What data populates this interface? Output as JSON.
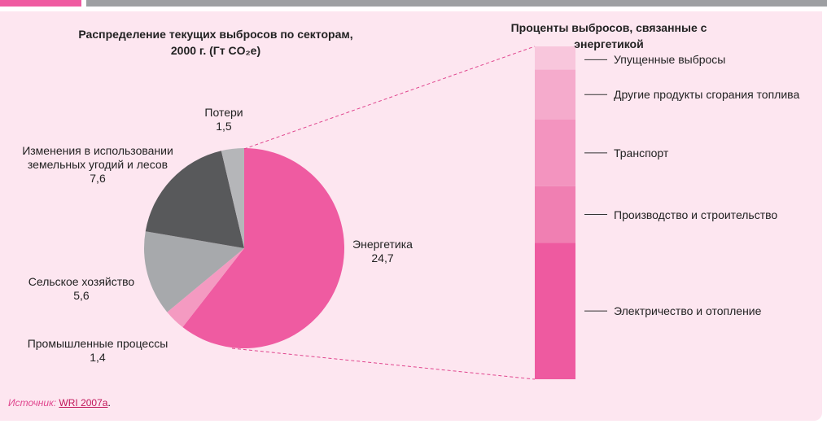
{
  "chart_data": [
    {
      "type": "pie",
      "title": "Распределение текущих выбросов по секторам,\n2000 г. (Гт CO₂e)",
      "categories": [
        "Энергетика",
        "Промышленные процессы",
        "Сельское хозяйство",
        "Изменения в использовании\nземельных угодий и лесов",
        "Потери"
      ],
      "values": [
        24.7,
        1.4,
        5.6,
        7.6,
        1.5
      ],
      "value_labels": [
        "24,7",
        "1,4",
        "5,6",
        "7,6",
        "1,5"
      ],
      "colors": [
        "#ef5ba1",
        "#f49ac1",
        "#a7a9ac",
        "#58595b",
        "#b5b6b9"
      ]
    },
    {
      "type": "bar",
      "title": "Проценты выбросов, связанные с энергетикой",
      "series": [
        {
          "name": "Упущенные выбросы",
          "color": "#f8c6dc",
          "values": [
            7
          ]
        },
        {
          "name": "Другие продукты сгорания топлива",
          "color": "#f5abcc",
          "values": [
            15
          ]
        },
        {
          "name": "Транспорт",
          "color": "#f394bf",
          "values": [
            20
          ]
        },
        {
          "name": "Производство и строительство",
          "color": "#f07fb2",
          "values": [
            17
          ]
        },
        {
          "name": "Электричество и отопление",
          "color": "#ee5aa0",
          "values": [
            41
          ]
        }
      ]
    }
  ],
  "source": {
    "label": "Источник:",
    "text": "WRI 2007a"
  }
}
